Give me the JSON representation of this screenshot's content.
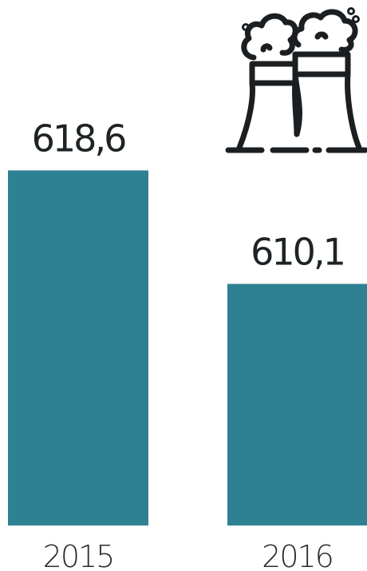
{
  "chart_data": {
    "type": "bar",
    "categories": [
      "2015",
      "2016"
    ],
    "values": [
      618.6,
      610.1
    ],
    "value_labels": [
      "618,6",
      "610,1"
    ],
    "title": "",
    "xlabel": "",
    "ylabel": "",
    "bar_color": "#2e8193",
    "ylim": [
      592,
      620
    ],
    "grid": false,
    "legend": "none"
  },
  "icon": "power-plant-cooling-towers-icon"
}
